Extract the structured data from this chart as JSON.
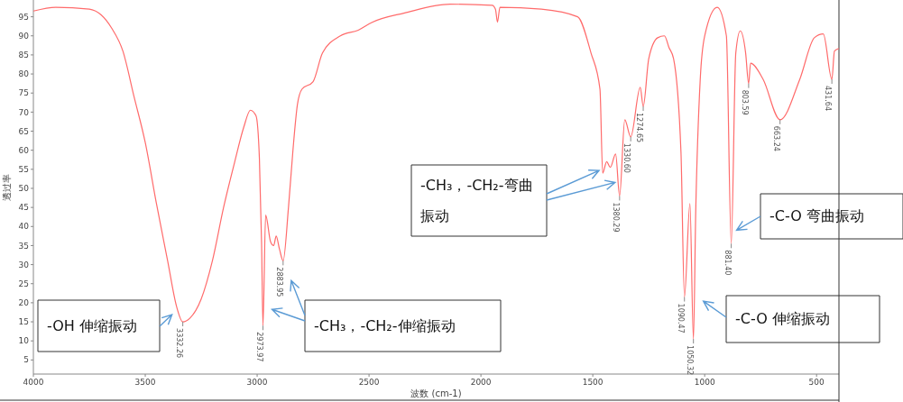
{
  "chart_data": {
    "type": "line",
    "xlabel": "波数 (cm-1)",
    "ylabel": "透过率",
    "color": "#ff6b6b",
    "x": [
      4000,
      3900,
      3750,
      3650,
      3600,
      3550,
      3500,
      3450,
      3400,
      3360,
      3332.26,
      3300,
      3250,
      3200,
      3150,
      3100,
      3060,
      3030,
      3005,
      2990,
      2980,
      2973.97,
      2962,
      2940,
      2926,
      2915,
      2900,
      2883.95,
      2860,
      2840,
      2820,
      2800,
      2750,
      2708,
      2628,
      2548,
      2488,
      2341,
      2138,
      1950,
      1935,
      1926,
      1915,
      1730,
      1568,
      1508,
      1468,
      1455.8,
      1438,
      1422,
      1398,
      1380.29,
      1357,
      1330.6,
      1288,
      1274.65,
      1250,
      1210,
      1180,
      1160,
      1139,
      1106,
      1090.47,
      1066,
      1050.32,
      1040,
      1020,
      1000,
      944,
      903,
      881.4,
      861,
      841,
      817,
      803.59,
      795,
      739,
      663.24,
      575,
      510,
      470,
      431.64,
      420,
      400
    ],
    "values": [
      96.5,
      97.5,
      97,
      92,
      86,
      74,
      62,
      46,
      31,
      19,
      15,
      16,
      21,
      31,
      45,
      57,
      66,
      70.5,
      69,
      58,
      35,
      14,
      43,
      36,
      35,
      37.5,
      34,
      31,
      45,
      60,
      72,
      76,
      78,
      85.5,
      90,
      91.5,
      93.5,
      96,
      98.3,
      98,
      97,
      93.6,
      97.5,
      97,
      95,
      85.5,
      76,
      54,
      57,
      55.5,
      59,
      48,
      68,
      63.5,
      76.5,
      71.5,
      84,
      89.5,
      90,
      87,
      84,
      59.5,
      21.5,
      46,
      10.5,
      44,
      78.5,
      90,
      97.5,
      90,
      35.5,
      85.5,
      91.3,
      85.5,
      77.5,
      82.8,
      78.6,
      68,
      78.6,
      89.5,
      90.5,
      78.6,
      86,
      86.7
    ],
    "xlim": [
      4000,
      400
    ],
    "ylim": [
      1.3,
      99.4
    ],
    "xticks": [
      4000,
      3500,
      3000,
      2500,
      2000,
      1500,
      1000,
      500
    ],
    "yticks": [
      5,
      10,
      15,
      20,
      25,
      30,
      35,
      40,
      45,
      50,
      55,
      60,
      65,
      70,
      75,
      80,
      85,
      90,
      95
    ],
    "annotations": [
      {
        "text": "3332.26",
        "x": 3332.26,
        "y": 15
      },
      {
        "text": "2973.97",
        "x": 2973.97,
        "y": 14
      },
      {
        "text": "2883.95",
        "x": 2883.95,
        "y": 31
      },
      {
        "text": "1380.29",
        "x": 1380.29,
        "y": 48
      },
      {
        "text": "1330.60",
        "x": 1330.6,
        "y": 63.5
      },
      {
        "text": "1274.65",
        "x": 1274.65,
        "y": 71.5
      },
      {
        "text": "1090.47",
        "x": 1090.47,
        "y": 21.5
      },
      {
        "text": "1050.32",
        "x": 1050.32,
        "y": 10.5
      },
      {
        "text": "881.40",
        "x": 881.4,
        "y": 35.5
      },
      {
        "text": "803.59",
        "x": 803.59,
        "y": 77.5
      },
      {
        "text": "663.24",
        "x": 663.24,
        "y": 68
      },
      {
        "text": "431.64",
        "x": 431.64,
        "y": 78.6
      },
      "-OH 伸缩振动",
      "-CH₃，-CH₂-伸缩振动",
      {
        "text": "-CH₃，-CH₂-弯曲振动",
        "x": 1455.8,
        "y": 54
      },
      "-C-O 弯曲振动",
      "-C-O 伸缩振动"
    ]
  }
}
